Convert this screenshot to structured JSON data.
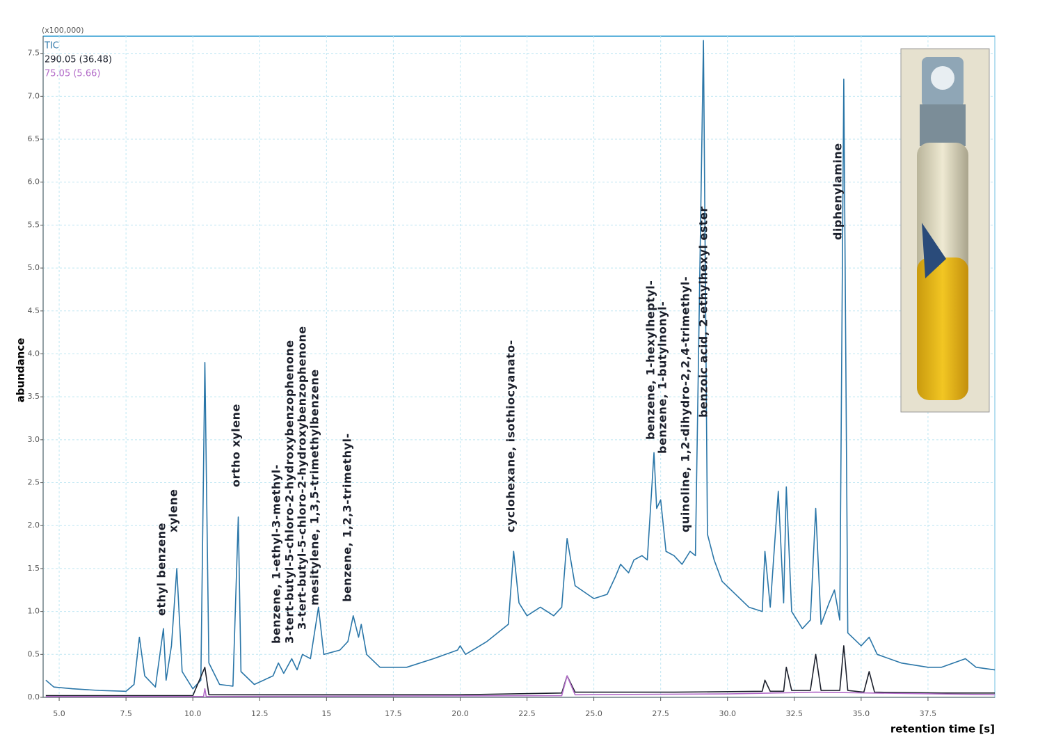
{
  "chart_data": {
    "type": "line",
    "y_axis_label": "abundance",
    "x_axis_label": "retention time [s]",
    "y_scale_label": "(x100,000)",
    "xlim": [
      4.4,
      40.0
    ],
    "ylim": [
      0,
      7.7
    ],
    "xticks": [
      {
        "value": 5,
        "label": "5.0"
      },
      7.5,
      {
        "value": 10,
        "label": "10.0"
      },
      12.5,
      15.0,
      17.5,
      {
        "value": 20,
        "label": "20.0"
      },
      22.5,
      {
        "value": 25,
        "label": "25.0"
      },
      27.5,
      {
        "value": 30,
        "label": "30.0"
      },
      32.5,
      {
        "value": 35,
        "label": "35.0"
      },
      37.5
    ],
    "yticks": [
      {
        "value": 0,
        "label": "0.0"
      },
      0.5,
      {
        "value": 1,
        "label": "1.0"
      },
      1.5,
      {
        "value": 2,
        "label": "2.0"
      },
      2.5,
      {
        "value": 3,
        "label": "3.0"
      },
      3.5,
      {
        "value": 4,
        "label": "4.0"
      },
      4.5,
      {
        "value": 5,
        "label": "5.0"
      },
      5.5,
      {
        "value": 6,
        "label": "6.0"
      },
      6.5,
      {
        "value": 7,
        "label": "7.0"
      },
      7.5
    ],
    "grid": true,
    "series": [
      {
        "name": "TIC",
        "color": "#2a76a8",
        "x": [
          4.5,
          4.8,
          5.5,
          6.5,
          7.5,
          7.8,
          8.0,
          8.2,
          8.6,
          8.9,
          9.0,
          9.2,
          9.4,
          9.6,
          10.0,
          10.3,
          10.45,
          10.6,
          11.0,
          11.5,
          11.7,
          11.8,
          12.3,
          13.0,
          13.2,
          13.4,
          13.7,
          13.9,
          14.1,
          14.4,
          14.7,
          14.9,
          15.5,
          15.8,
          16.0,
          16.2,
          16.3,
          16.5,
          17.0,
          18.0,
          19.0,
          19.9,
          20.0,
          20.2,
          21.0,
          21.8,
          22.0,
          22.2,
          22.5,
          23.0,
          23.5,
          23.8,
          24.0,
          24.3,
          25.0,
          25.5,
          25.8,
          26.0,
          26.3,
          26.5,
          26.8,
          27.0,
          27.25,
          27.35,
          27.5,
          27.7,
          28.0,
          28.3,
          28.6,
          28.8,
          29.1,
          29.25,
          29.5,
          29.8,
          30.3,
          30.8,
          31.3,
          31.4,
          31.6,
          31.9,
          32.1,
          32.2,
          32.4,
          32.8,
          33.1,
          33.3,
          33.5,
          33.8,
          34.0,
          34.2,
          34.35,
          34.5,
          35.0,
          35.3,
          35.6,
          36.5,
          37.5,
          38.0,
          38.9,
          39.3,
          40.0
        ],
        "values": [
          0.2,
          0.12,
          0.1,
          0.08,
          0.07,
          0.15,
          0.7,
          0.25,
          0.12,
          0.8,
          0.2,
          0.6,
          1.5,
          0.3,
          0.1,
          0.2,
          3.9,
          0.4,
          0.15,
          0.13,
          2.1,
          0.3,
          0.15,
          0.25,
          0.4,
          0.28,
          0.45,
          0.32,
          0.5,
          0.45,
          1.05,
          0.5,
          0.55,
          0.65,
          0.95,
          0.7,
          0.85,
          0.5,
          0.35,
          0.35,
          0.45,
          0.55,
          0.6,
          0.5,
          0.65,
          0.85,
          1.7,
          1.1,
          0.95,
          1.05,
          0.95,
          1.05,
          1.85,
          1.3,
          1.15,
          1.2,
          1.4,
          1.55,
          1.45,
          1.6,
          1.65,
          1.6,
          2.85,
          2.2,
          2.3,
          1.7,
          1.65,
          1.55,
          1.7,
          1.65,
          7.65,
          1.9,
          1.6,
          1.35,
          1.2,
          1.05,
          1.0,
          1.7,
          1.05,
          2.4,
          1.1,
          2.45,
          1.0,
          0.8,
          0.9,
          2.2,
          0.85,
          1.1,
          1.25,
          0.9,
          7.2,
          0.75,
          0.6,
          0.7,
          0.5,
          0.4,
          0.35,
          0.35,
          0.45,
          0.35,
          0.32
        ]
      },
      {
        "name": "290.05 (36.48)",
        "color": "#1b1f2b",
        "x": [
          4.5,
          10.0,
          10.45,
          10.6,
          15,
          20,
          23.8,
          24.0,
          24.3,
          28,
          31.3,
          31.4,
          31.6,
          32.1,
          32.2,
          32.4,
          33.1,
          33.3,
          33.5,
          34.2,
          34.35,
          34.5,
          35.1,
          35.3,
          35.5,
          38,
          40.0
        ],
        "values": [
          0.02,
          0.02,
          0.35,
          0.03,
          0.03,
          0.03,
          0.05,
          0.25,
          0.06,
          0.06,
          0.07,
          0.2,
          0.07,
          0.07,
          0.35,
          0.08,
          0.08,
          0.5,
          0.08,
          0.08,
          0.6,
          0.08,
          0.06,
          0.3,
          0.06,
          0.05,
          0.05
        ]
      },
      {
        "name": "75.05 (5.66)",
        "color": "#b36cc9",
        "x": [
          4.5,
          10.4,
          10.45,
          10.5,
          23.8,
          24.0,
          24.3,
          30,
          33.3,
          40.0
        ],
        "values": [
          0.01,
          0.01,
          0.1,
          0.01,
          0.02,
          0.25,
          0.03,
          0.04,
          0.06,
          0.03
        ]
      }
    ],
    "annotations": [
      "ethyl benzene",
      "xylene",
      "ortho xylene",
      "benzene, 1-ethyl-3-methyl-",
      "3-tert-butyl-5-chloro-2-hydroxybenzophenone",
      "3-tert-butyl-5-chloro-2-hydroxybenzophenone",
      "mesitylene, 1,3,5-trimethylbenzene",
      "benzene, 1,2,3-trimethyl-",
      "cyclohexane, isothiocyanato-",
      "benzene, 1-hexylheptyl-",
      "benzene, 1-butylnonyl-",
      "quinoline, 1,2-dihydro-2,2,4-trimethyl-",
      "benzoic acid, 2-ethylhexyl ester",
      "diphenylamine"
    ]
  }
}
